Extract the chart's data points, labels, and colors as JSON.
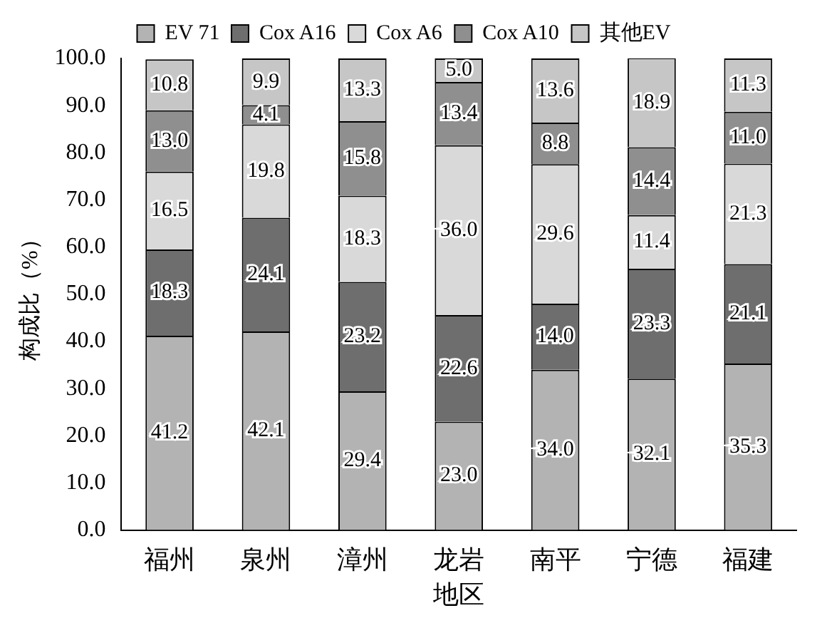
{
  "chart_data": {
    "type": "bar",
    "stacked": true,
    "xlabel": "地区",
    "ylabel": "构成比（%）",
    "categories": [
      "福州",
      "泉州",
      "漳州",
      "龙岩",
      "南平",
      "宁德",
      "福建"
    ],
    "series": [
      {
        "name": "EV 71",
        "color": "#b3b3b3",
        "values": [
          41.2,
          42.1,
          29.4,
          23.0,
          34.0,
          32.1,
          35.3
        ],
        "value_labels": [
          "41.2",
          "42.1",
          "29.4",
          "23.0",
          "34.0",
          "32.1",
          "35.3"
        ]
      },
      {
        "name": "Cox A16",
        "color": "#6e6e6e",
        "values": [
          18.3,
          24.1,
          23.2,
          22.6,
          14.0,
          23.3,
          21.1
        ],
        "value_labels": [
          "18.3",
          "24.1",
          "23.2",
          "22.6",
          "14.0",
          "23.3",
          "21.1"
        ]
      },
      {
        "name": "Cox A6",
        "color": "#d9d9d9",
        "values": [
          16.5,
          19.8,
          18.3,
          36.0,
          29.6,
          11.4,
          21.3
        ],
        "value_labels": [
          "16.5",
          "19.8",
          "18.3",
          "36.0",
          "29.6",
          "11.4",
          "21.3"
        ]
      },
      {
        "name": "Cox A10",
        "color": "#8f8f8f",
        "values": [
          13.0,
          4.1,
          15.8,
          13.4,
          8.8,
          14.4,
          11.0
        ],
        "value_labels": [
          "13.0",
          "4.1",
          "15.8",
          "13.4",
          "8.8",
          "14.4",
          "11.0"
        ]
      },
      {
        "name": "其他EV",
        "color": "#c6c6c6",
        "values": [
          10.8,
          9.9,
          13.3,
          5.0,
          13.6,
          18.9,
          11.3
        ],
        "value_labels": [
          "10.8",
          "9.9",
          "13.3",
          "5.0",
          "13.6",
          "18.9",
          "11.3"
        ]
      }
    ],
    "ylim": [
      0,
      100
    ],
    "yticks": [
      {
        "value": 0,
        "label": "0.0"
      },
      {
        "value": 10,
        "label": "10.0"
      },
      {
        "value": 20,
        "label": "20.0"
      },
      {
        "value": 30,
        "label": "30.0"
      },
      {
        "value": 40,
        "label": "40.0"
      },
      {
        "value": 50,
        "label": "50.0"
      },
      {
        "value": 60,
        "label": "60.0"
      },
      {
        "value": 70,
        "label": "70.0"
      },
      {
        "value": 80,
        "label": "80.0"
      },
      {
        "value": 90,
        "label": "90.0"
      },
      {
        "value": 100,
        "label": "100.0"
      }
    ],
    "grid": false,
    "legend": "top"
  }
}
